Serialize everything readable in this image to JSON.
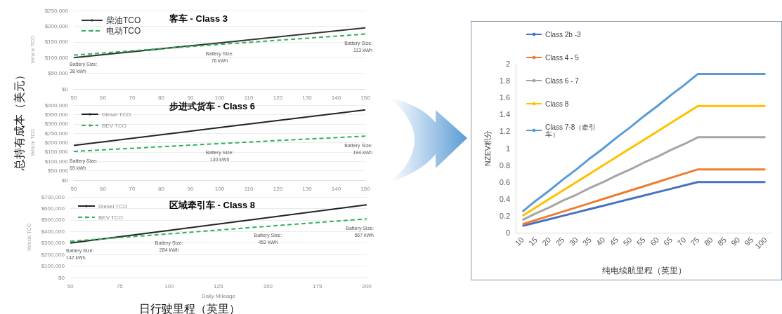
{
  "chart_data": [
    {
      "type": "line",
      "title": "客车 - Class 3",
      "ylabel": "Vehicle TCO",
      "x": [
        50,
        100,
        150
      ],
      "xlim": [
        50,
        150
      ],
      "xticks": [
        50,
        60,
        70,
        80,
        90,
        100,
        110,
        120,
        130,
        140,
        150
      ],
      "ylim": [
        0,
        250000
      ],
      "yticks": [
        {
          "value": 0,
          "label": "$0"
        },
        {
          "value": 50000,
          "label": "$50,000"
        },
        {
          "value": 100000,
          "label": "$100,000"
        },
        {
          "value": 150000,
          "label": "$150,000"
        },
        {
          "value": 200000,
          "label": "$200,000"
        },
        {
          "value": 250000,
          "label": "$250,000"
        }
      ],
      "grid": "y",
      "legend": "top left",
      "marker": "none",
      "series": [
        {
          "name": "柴油TCO",
          "color": "#333333",
          "line_style": "solid",
          "values": [
            100000,
            147000,
            195000
          ]
        },
        {
          "name": "电动TCO",
          "color": "#2db457",
          "line_style": "dashed",
          "values": [
            108000,
            142000,
            175000
          ]
        }
      ],
      "annotations": [
        {
          "text": "Battery Size:\n38 kWh",
          "x": 50,
          "y": 108000
        },
        {
          "text": "Battery Size:\n76 kWh",
          "x": 100,
          "y": 142000
        },
        {
          "text": "Battery Size:\n113 kWh",
          "x": 150,
          "y": 175000
        }
      ]
    },
    {
      "type": "line",
      "title": "步进式货车 - Class 6",
      "ylabel": "Vehicle TCO",
      "x": [
        50,
        100,
        150
      ],
      "xlim": [
        50,
        150
      ],
      "xticks": [
        50,
        60,
        70,
        80,
        90,
        100,
        110,
        120,
        130,
        140,
        150
      ],
      "ylim": [
        0,
        400000
      ],
      "yticks": [
        {
          "value": 0,
          "label": "$0"
        },
        {
          "value": 50000,
          "label": "$50,000"
        },
        {
          "value": 100000,
          "label": "$100,000"
        },
        {
          "value": 150000,
          "label": "$150,000"
        },
        {
          "value": 200000,
          "label": "$200,000"
        },
        {
          "value": 250000,
          "label": "$250,000"
        },
        {
          "value": 300000,
          "label": "$300,000"
        },
        {
          "value": 350000,
          "label": "$350,000"
        },
        {
          "value": 400000,
          "label": "$400,000"
        }
      ],
      "grid": "y",
      "legend": "top left",
      "marker": "none",
      "series": [
        {
          "name": "Diesel TCO",
          "color": "#222222",
          "line_style": "solid",
          "values": [
            185000,
            280000,
            375000
          ]
        },
        {
          "name": "BEV TCO",
          "color": "#2db457",
          "line_style": "dashed",
          "values": [
            153000,
            195000,
            235000
          ]
        }
      ],
      "annotations": [
        "总持有成本（美元）",
        {
          "text": "Battery Size:\n65 kWh",
          "x": 50,
          "y": 153000
        },
        {
          "text": "Battery Size:\n130 kWh",
          "x": 100,
          "y": 195000
        },
        {
          "text": "Battery Size:\n194 kWh",
          "x": 150,
          "y": 235000
        }
      ]
    },
    {
      "type": "line",
      "title": "区域牵引车 - Class 8",
      "ylabel": "Vehicle TCO",
      "xlabel": "Daily Mileage",
      "x": [
        50,
        100,
        150,
        200
      ],
      "xlim": [
        50,
        200
      ],
      "xticks": [
        50,
        75,
        100,
        125,
        150,
        175,
        200
      ],
      "ylim": [
        0,
        700000
      ],
      "yticks": [
        {
          "value": 0,
          "label": "$0"
        },
        {
          "value": 100000,
          "label": "$100,000"
        },
        {
          "value": 200000,
          "label": "$200,000"
        },
        {
          "value": 300000,
          "label": "$300,000"
        },
        {
          "value": 400000,
          "label": "$400,000"
        },
        {
          "value": 500000,
          "label": "$500,000"
        },
        {
          "value": 600000,
          "label": "$600,000"
        },
        {
          "value": 700000,
          "label": "$700,000"
        }
      ],
      "grid": "y",
      "legend": "top left",
      "marker": "none",
      "series": [
        {
          "name": "Diesel TCO",
          "color": "#222222",
          "line_style": "solid",
          "values": [
            300000,
            410000,
            520000,
            632000
          ]
        },
        {
          "name": "BEV TCO",
          "color": "#2db457",
          "line_style": "dashed",
          "values": [
            315000,
            380000,
            445000,
            510000
          ]
        }
      ],
      "annotations": [
        "日行驶里程（英里）",
        {
          "text": "Battery Size:\n142 kWh",
          "x": 50,
          "y": 315000
        },
        {
          "text": "Battery Size:\n284 kWh",
          "x": 100,
          "y": 380000
        },
        {
          "text": "Battery Size:\n452 kWh",
          "x": 150,
          "y": 445000
        },
        {
          "text": "Battery Size:\n567 kWh",
          "x": 200,
          "y": 510000
        }
      ]
    },
    {
      "type": "line",
      "ylabel": "NZEV积分",
      "xlabel": "纯电续航里程（英里）",
      "categories": [
        "10",
        "15",
        "20",
        "25",
        "30",
        "35",
        "40",
        "45",
        "50",
        "55",
        "60",
        "65",
        "70",
        "75",
        "80",
        "85",
        "90",
        "95",
        "100"
      ],
      "ylim": [
        0,
        2
      ],
      "yticks": [
        0,
        0.2,
        0.4,
        0.6,
        0.8,
        1,
        1.2,
        1.4,
        1.6,
        1.8,
        2
      ],
      "grid": false,
      "legend": "top left",
      "marker": "none",
      "series": [
        {
          "name": "Class 2b -3",
          "color": "#4472c4",
          "line_style": "solid",
          "values": [
            0.08,
            0.12,
            0.16,
            0.2,
            0.24,
            0.28,
            0.32,
            0.36,
            0.4,
            0.44,
            0.48,
            0.52,
            0.56,
            0.6,
            0.6,
            0.6,
            0.6,
            0.6,
            0.6
          ]
        },
        {
          "name": "Class 4 - 5",
          "color": "#ed7d31",
          "line_style": "solid",
          "values": [
            0.1,
            0.15,
            0.2,
            0.25,
            0.3,
            0.35,
            0.4,
            0.45,
            0.5,
            0.55,
            0.6,
            0.65,
            0.7,
            0.75,
            0.75,
            0.75,
            0.75,
            0.75,
            0.75
          ]
        },
        {
          "name": "Class 6 - 7",
          "color": "#a5a5a5",
          "line_style": "solid",
          "values": [
            0.15,
            0.23,
            0.3,
            0.38,
            0.45,
            0.53,
            0.6,
            0.68,
            0.75,
            0.83,
            0.9,
            0.98,
            1.05,
            1.13,
            1.13,
            1.13,
            1.13,
            1.13,
            1.13
          ]
        },
        {
          "name": "Class 8",
          "color": "#ffc000",
          "line_style": "solid",
          "values": [
            0.2,
            0.3,
            0.4,
            0.5,
            0.6,
            0.7,
            0.8,
            0.9,
            1,
            1.1,
            1.2,
            1.3,
            1.4,
            1.5,
            1.5,
            1.5,
            1.5,
            1.5,
            1.5
          ]
        },
        {
          "name": "Class 7-8（牵引车）",
          "color": "#5b9bd5",
          "line_style": "solid",
          "values": [
            0.25,
            0.38,
            0.5,
            0.63,
            0.75,
            0.88,
            1,
            1.13,
            1.25,
            1.38,
            1.5,
            1.63,
            1.75,
            1.88,
            1.88,
            1.88,
            1.88,
            1.88,
            1.88
          ]
        }
      ]
    }
  ]
}
